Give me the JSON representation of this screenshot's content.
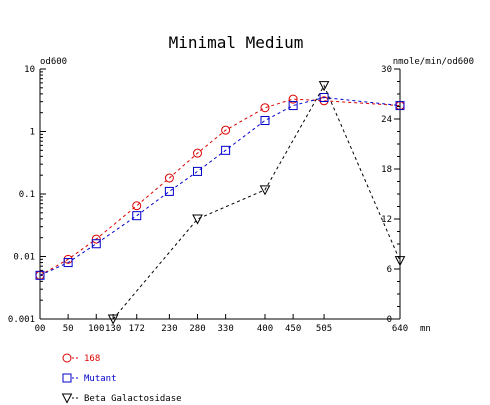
{
  "chart_data": {
    "type": "line",
    "title": "Minimal Medium",
    "left_axis_label": "od600",
    "right_axis_label": "nmole/min/od600",
    "x_unit_label": "mn",
    "x_ticks": [
      0,
      50,
      100,
      130,
      172,
      230,
      280,
      330,
      400,
      450,
      505,
      640
    ],
    "x_tick_labels": [
      "00",
      "50",
      "100",
      "130",
      "172",
      "230",
      "280",
      "330",
      "400",
      "450",
      "505",
      "640"
    ],
    "x_range": [
      0,
      640
    ],
    "y_left": {
      "scale": "log",
      "range": [
        0.001,
        10
      ],
      "ticks": [
        0.001,
        0.01,
        0.1,
        1,
        10
      ],
      "tick_labels": [
        "0.001",
        "0.01",
        "0.1",
        "1",
        "10"
      ]
    },
    "y_right": {
      "scale": "linear",
      "range": [
        0,
        30
      ],
      "ticks": [
        0,
        6,
        12,
        18,
        24,
        30
      ],
      "tick_labels": [
        "0",
        "6",
        "12",
        "18",
        "24",
        "30"
      ]
    },
    "legend_position": "bottom-left",
    "series": [
      {
        "name": "168",
        "axis": "left",
        "marker": "circle",
        "color": "#dd0000",
        "x": [
          0,
          50,
          100,
          172,
          230,
          280,
          330,
          400,
          450,
          505,
          640
        ],
        "y": [
          0.005,
          0.009,
          0.019,
          0.065,
          0.18,
          0.45,
          1.05,
          2.4,
          3.3,
          3.1,
          2.6
        ]
      },
      {
        "name": "Mutant",
        "axis": "left",
        "marker": "square",
        "color": "#0000cc",
        "x": [
          0,
          50,
          100,
          172,
          230,
          280,
          330,
          400,
          450,
          505,
          640
        ],
        "y": [
          0.005,
          0.008,
          0.016,
          0.045,
          0.11,
          0.23,
          0.5,
          1.5,
          2.6,
          3.5,
          2.6
        ]
      },
      {
        "name": "Beta Galactosidase",
        "axis": "right",
        "marker": "triangle-down",
        "color": "#000000",
        "x": [
          130,
          280,
          400,
          505,
          640
        ],
        "y": [
          0,
          12,
          15.5,
          28,
          7
        ]
      }
    ]
  }
}
